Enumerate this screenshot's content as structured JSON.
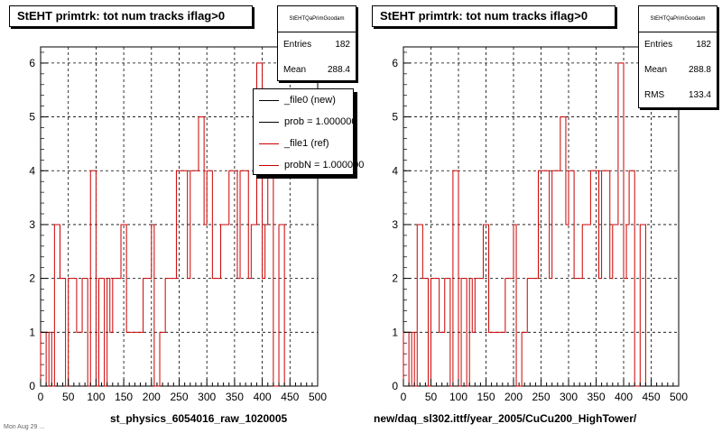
{
  "charts": [
    {
      "id": "left",
      "title": "StEHT primtrk: tot num tracks iflag>0",
      "xlabel": "st_physics_6054016_raw_1020005",
      "stats": {
        "header": "StEHTQaPrimGoodam",
        "rows": [
          {
            "label": "Entries",
            "value": "182"
          },
          {
            "label": "Mean",
            "value": "288.4"
          }
        ]
      },
      "legend": {
        "entries": [
          {
            "label": "_file0 (new)",
            "color": "#000000"
          },
          {
            "label": "prob = 1.000000",
            "color": "#000000"
          },
          {
            "label": "_file1 (ref)",
            "color": "#cc0000"
          },
          {
            "label": "probN = 1.000000",
            "color": "#cc0000"
          }
        ]
      }
    },
    {
      "id": "right",
      "title": "StEHT primtrk: tot num tracks iflag>0",
      "xlabel": "new/daq_sl302.ittf/year_2005/CuCu200_HighTower/",
      "stats": {
        "header": "StEHTQaPrimGoodam",
        "rows": [
          {
            "label": "Entries",
            "value": "182"
          },
          {
            "label": "Mean",
            "value": "288.8"
          },
          {
            "label": "RMS",
            "value": "133.4"
          }
        ]
      }
    }
  ],
  "footnote": "Mon Aug 29 ...",
  "chart_data": {
    "type": "histogram-step",
    "xlim": [
      0,
      500
    ],
    "ylim": [
      0,
      6.3
    ],
    "xticks": [
      0,
      50,
      100,
      150,
      200,
      250,
      300,
      350,
      400,
      450,
      500
    ],
    "yticks": [
      0,
      1,
      2,
      3,
      4,
      5,
      6
    ],
    "grid": true,
    "bin_width": 5,
    "color": "#cc0000",
    "values": [
      1,
      1,
      0,
      1,
      0,
      3,
      3,
      2,
      2,
      0,
      2,
      2,
      2,
      1,
      1,
      2,
      2,
      0,
      4,
      4,
      0,
      2,
      2,
      0,
      2,
      1,
      2,
      2,
      2,
      3,
      3,
      1,
      1,
      1,
      1,
      1,
      1,
      2,
      2,
      2,
      3,
      0,
      0,
      1,
      1,
      2,
      2,
      2,
      2,
      4,
      4,
      4,
      4,
      2,
      4,
      4,
      4,
      5,
      5,
      3,
      4,
      4,
      2,
      2,
      2,
      3,
      3,
      3,
      4,
      4,
      4,
      2,
      4,
      4,
      4,
      2,
      3,
      3,
      6,
      6,
      2,
      3,
      4,
      4,
      0,
      0,
      3,
      3
    ]
  }
}
